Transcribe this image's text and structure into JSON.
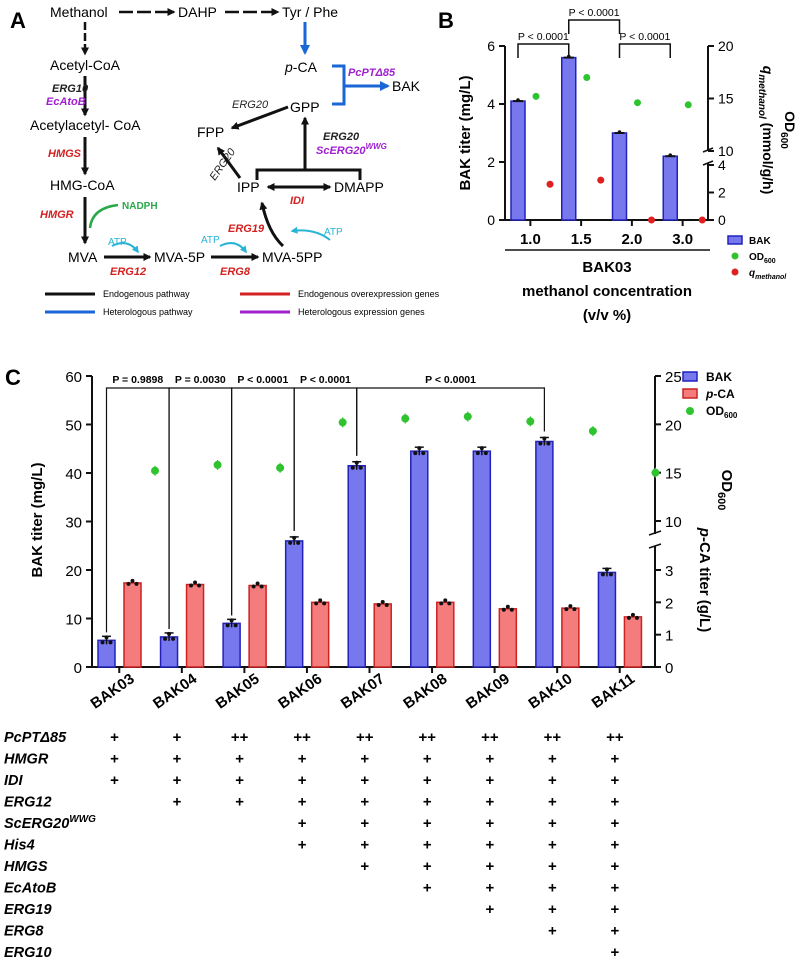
{
  "colors": {
    "bak": "#7777ee",
    "bak_edge": "#2222bb",
    "pca": "#f47c7c",
    "pca_edge": "#cc2222",
    "od": "#2fc42f",
    "q": "#e02020",
    "black": "#111111",
    "hetero": "#1a66d6",
    "endo_red": "#d32020",
    "purple": "#a020d0",
    "atp": "#28b4d6",
    "nadph": "#2aa84a"
  },
  "panelA": {
    "label": "A",
    "nodes": {
      "methanol": "Methanol",
      "dahp": "DAHP",
      "tyrphe": "Tyr / Phe",
      "acetylcoa": "Acetyl-CoA",
      "pca": "p-CA",
      "bak": "BAK",
      "acetoacetyl": "Acetylacetyl- CoA",
      "gpp": "GPP",
      "fpp": "FPP",
      "hmgcoa": "HMG-CoA",
      "ipp": "IPP",
      "dmapp": "DMAPP",
      "mva": "MVA",
      "mva5p": "MVA-5P",
      "mva5pp": "MVA-5PP"
    },
    "enzymes": {
      "erg10": "ERG10",
      "ecatob": "EcAtoB",
      "hmgs": "HMGS",
      "hmgr": "HMGR",
      "nadph": "NADPH",
      "erg12": "ERG12",
      "atp1": "ATP",
      "atp2": "ATP",
      "erg8": "ERG8",
      "erg19": "ERG19",
      "idi": "IDI",
      "erg20a": "ERG20",
      "erg20b": "ERG20",
      "erg20c": "ERG20",
      "scerg20": "ScERG20",
      "scerg20sup": "WWG",
      "pcpt": "PcPTΔ85"
    },
    "legend": [
      {
        "label": "Endogenous pathway",
        "color": "#111111"
      },
      {
        "label": "Heterologous pathway",
        "color": "#1a66d6"
      },
      {
        "label": "Endogenous overexpression genes",
        "color": "#d32020"
      },
      {
        "label": "Heterologous expression genes",
        "color": "#a020d0"
      }
    ]
  },
  "chart_data": [
    {
      "panel": "B",
      "type": "bar",
      "categories": [
        "1.0",
        "1.5",
        "2.0",
        "3.0"
      ],
      "xlabel": "BAK03",
      "xlabel2": "methanol concentration",
      "xlabel3": "(v/v %)",
      "ylabel": "BAK titer (mg/L)",
      "ylim": [
        0,
        6
      ],
      "yticks": [
        "0",
        "2",
        "4",
        "6"
      ],
      "y2label": "OD600",
      "y3label": "qmethanol (mmol/g/h)",
      "y2ticks_lower": [
        "0",
        "2",
        "4"
      ],
      "y2ticks_upper": [
        "10",
        "15",
        "20"
      ],
      "series": [
        {
          "name": "BAK",
          "values": [
            4.1,
            5.6,
            3.0,
            2.2
          ]
        },
        {
          "name": "OD600",
          "values": [
            15.2,
            17.0,
            14.6,
            14.4
          ]
        },
        {
          "name": "qmethanol",
          "values": [
            2.6,
            2.9,
            0.0,
            0.0
          ]
        }
      ],
      "comparisons": [
        "P < 0.0001",
        "P < 0.0001",
        "P < 0.0001"
      ]
    },
    {
      "panel": "C",
      "type": "bar",
      "categories": [
        "BAK03",
        "BAK04",
        "BAK05",
        "BAK06",
        "BAK07",
        "BAK08",
        "BAK09",
        "BAK10",
        "BAK11"
      ],
      "ylabel": "BAK titer (mg/L)",
      "ylim": [
        0,
        60
      ],
      "yticks": [
        "0",
        "10",
        "20",
        "30",
        "40",
        "50",
        "60"
      ],
      "y2label": "p-CA titer (g/L)",
      "y3label": "OD600",
      "y2ticks_lower": [
        "0",
        "1",
        "2",
        "3"
      ],
      "y2ticks_upper": [
        "10",
        "15",
        "20",
        "25"
      ],
      "series": [
        {
          "name": "BAK",
          "values": [
            5.5,
            6.2,
            9.0,
            26.0,
            41.5,
            44.5,
            44.5,
            46.5,
            19.5
          ]
        },
        {
          "name": "p-CA",
          "values": [
            2.6,
            2.55,
            2.52,
            2.0,
            1.95,
            2.0,
            1.8,
            1.82,
            1.55
          ]
        },
        {
          "name": "OD600",
          "values": [
            15.2,
            15.8,
            15.5,
            20.2,
            20.6,
            20.8,
            20.3,
            19.3,
            15.0
          ]
        }
      ],
      "comparisons": [
        "P = 0.9898",
        "P = 0.0030",
        "P < 0.0001",
        "P < 0.0001",
        "P < 0.0001"
      ],
      "genotype": [
        {
          "gene": "PcPTΔ85",
          "sup": "",
          "marks": [
            "+",
            "+",
            "++",
            "++",
            "++",
            "++",
            "++",
            "++",
            "++"
          ]
        },
        {
          "gene": "HMGR",
          "sup": "",
          "marks": [
            "+",
            "+",
            "+",
            "+",
            "+",
            "+",
            "+",
            "+",
            "+"
          ]
        },
        {
          "gene": "IDI",
          "sup": "",
          "marks": [
            "+",
            "+",
            "+",
            "+",
            "+",
            "+",
            "+",
            "+",
            "+"
          ]
        },
        {
          "gene": "ERG12",
          "sup": "",
          "marks": [
            "",
            "+",
            "+",
            "+",
            "+",
            "+",
            "+",
            "+",
            "+"
          ]
        },
        {
          "gene": "ScERG20",
          "sup": "WWG",
          "marks": [
            "",
            "",
            "",
            "+",
            "+",
            "+",
            "+",
            "+",
            "+"
          ]
        },
        {
          "gene": "His4",
          "sup": "",
          "marks": [
            "",
            "",
            "",
            "+",
            "+",
            "+",
            "+",
            "+",
            "+"
          ]
        },
        {
          "gene": "HMGS",
          "sup": "",
          "marks": [
            "",
            "",
            "",
            "",
            "+",
            "+",
            "+",
            "+",
            "+"
          ]
        },
        {
          "gene": "EcAtoB",
          "sup": "",
          "marks": [
            "",
            "",
            "",
            "",
            "",
            "+",
            "+",
            "+",
            "+"
          ]
        },
        {
          "gene": "ERG19",
          "sup": "",
          "marks": [
            "",
            "",
            "",
            "",
            "",
            "",
            "+",
            "+",
            "+"
          ]
        },
        {
          "gene": "ERG8",
          "sup": "",
          "marks": [
            "",
            "",
            "",
            "",
            "",
            "",
            "",
            "+",
            "+"
          ]
        },
        {
          "gene": "ERG10",
          "sup": "",
          "marks": [
            "",
            "",
            "",
            "",
            "",
            "",
            "",
            "",
            "+"
          ]
        }
      ]
    }
  ],
  "panelB": {
    "label": "B",
    "legend": [
      "BAK",
      "OD600",
      "qmethanol"
    ]
  },
  "panelC": {
    "label": "C",
    "legend": [
      "BAK",
      "p-CA",
      "OD600"
    ]
  }
}
